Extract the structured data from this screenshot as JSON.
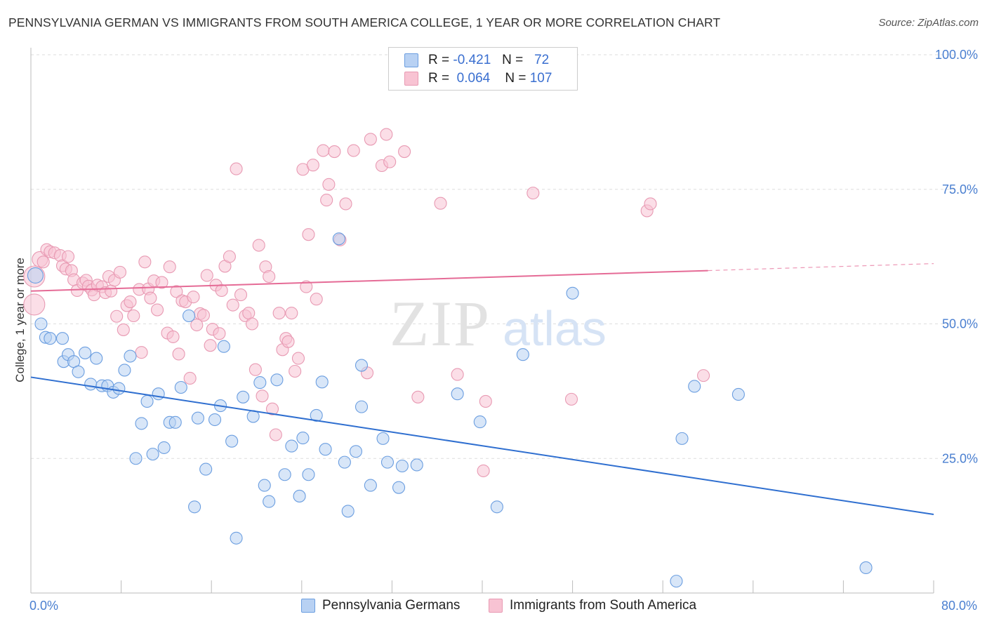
{
  "title": "PENNSYLVANIA GERMAN VS IMMIGRANTS FROM SOUTH AMERICA COLLEGE, 1 YEAR OR MORE CORRELATION CHART",
  "source": "Source: ZipAtlas.com",
  "watermark": {
    "zip": "ZIP",
    "atlas": "atlas"
  },
  "colors": {
    "blue_fill": "#b8d1f3",
    "blue_stroke": "#6b9ee0",
    "blue_line": "#2f6fd0",
    "pink_fill": "#f8c3d3",
    "pink_stroke": "#e89ab3",
    "pink_line": "#e56b96",
    "grid": "#dddddd",
    "tick_text": "#4a7fd0"
  },
  "legend": {
    "r_label": "R =",
    "n_label": "N =",
    "rows": [
      {
        "r": "-0.421",
        "n": "72"
      },
      {
        "r": "0.064",
        "n": "107"
      }
    ]
  },
  "chart_data": {
    "type": "scatter",
    "xlabel": "",
    "ylabel": "College, 1 year or more",
    "xlim": [
      0,
      80
    ],
    "ylim": [
      0,
      100
    ],
    "x_tick_labels": [
      "0.0%",
      "80.0%"
    ],
    "y_ticks": [
      25,
      50,
      75,
      100
    ],
    "y_tick_labels": [
      "25.0%",
      "50.0%",
      "75.0%",
      "100.0%"
    ],
    "grid": true,
    "legend_position": "top-center",
    "series": [
      {
        "name": "Pennsylvania Germans",
        "trend": {
          "x0": 0,
          "y0": 40.1,
          "x1": 80,
          "y1": 14.6
        },
        "points": [
          [
            0.4,
            59.0
          ],
          [
            0.9,
            50.0
          ],
          [
            1.3,
            47.5
          ],
          [
            1.7,
            47.3
          ],
          [
            2.8,
            47.3
          ],
          [
            2.9,
            43.0
          ],
          [
            3.3,
            44.3
          ],
          [
            3.8,
            43.0
          ],
          [
            4.2,
            41.1
          ],
          [
            4.8,
            44.6
          ],
          [
            5.3,
            38.8
          ],
          [
            5.8,
            43.6
          ],
          [
            6.3,
            38.5
          ],
          [
            6.8,
            38.5
          ],
          [
            7.3,
            37.3
          ],
          [
            7.8,
            38.0
          ],
          [
            8.3,
            41.4
          ],
          [
            8.8,
            44.0
          ],
          [
            9.3,
            25.0
          ],
          [
            9.8,
            31.5
          ],
          [
            10.3,
            35.6
          ],
          [
            10.8,
            25.8
          ],
          [
            11.3,
            37.0
          ],
          [
            11.8,
            27.0
          ],
          [
            12.3,
            31.7
          ],
          [
            12.8,
            31.7
          ],
          [
            13.3,
            38.2
          ],
          [
            14.0,
            51.5
          ],
          [
            14.5,
            16.0
          ],
          [
            14.8,
            32.5
          ],
          [
            15.5,
            23.0
          ],
          [
            16.3,
            32.2
          ],
          [
            16.8,
            34.8
          ],
          [
            17.1,
            45.8
          ],
          [
            17.8,
            28.2
          ],
          [
            18.2,
            10.2
          ],
          [
            18.8,
            36.4
          ],
          [
            19.7,
            32.8
          ],
          [
            20.3,
            39.1
          ],
          [
            20.7,
            20.0
          ],
          [
            21.1,
            17.0
          ],
          [
            21.8,
            39.6
          ],
          [
            22.5,
            22.0
          ],
          [
            23.1,
            27.3
          ],
          [
            23.8,
            18.0
          ],
          [
            24.1,
            28.8
          ],
          [
            24.6,
            22.0
          ],
          [
            25.3,
            33.0
          ],
          [
            25.8,
            39.2
          ],
          [
            26.1,
            26.7
          ],
          [
            27.3,
            65.8
          ],
          [
            27.8,
            24.3
          ],
          [
            28.1,
            15.2
          ],
          [
            28.8,
            26.3
          ],
          [
            29.3,
            34.6
          ],
          [
            29.3,
            42.3
          ],
          [
            30.1,
            20.0
          ],
          [
            31.2,
            28.7
          ],
          [
            31.6,
            24.3
          ],
          [
            32.6,
            19.6
          ],
          [
            32.9,
            23.6
          ],
          [
            34.2,
            23.8
          ],
          [
            37.8,
            37.0
          ],
          [
            39.8,
            31.8
          ],
          [
            41.3,
            16.0
          ],
          [
            43.6,
            44.3
          ],
          [
            48.0,
            55.7
          ],
          [
            57.2,
            2.2
          ],
          [
            57.7,
            28.7
          ],
          [
            58.8,
            38.4
          ],
          [
            62.7,
            36.9
          ],
          [
            74.0,
            4.7
          ]
        ]
      },
      {
        "name": "Immigrants from South America",
        "trend": {
          "x0": 0,
          "y0": 56.1,
          "x1": 60,
          "y1": 59.9,
          "x2": 80,
          "y2": 61.2
        },
        "points": [
          [
            0.3,
            53.6
          ],
          [
            0.3,
            58.8
          ],
          [
            0.8,
            62.0
          ],
          [
            1.1,
            61.5
          ],
          [
            1.4,
            63.8
          ],
          [
            1.7,
            63.4
          ],
          [
            2.1,
            63.2
          ],
          [
            2.6,
            62.7
          ],
          [
            2.8,
            60.8
          ],
          [
            3.1,
            60.2
          ],
          [
            3.3,
            62.5
          ],
          [
            3.6,
            59.9
          ],
          [
            3.8,
            58.2
          ],
          [
            4.1,
            56.2
          ],
          [
            4.6,
            57.6
          ],
          [
            4.9,
            58.1
          ],
          [
            5.1,
            57.0
          ],
          [
            5.4,
            56.3
          ],
          [
            5.6,
            55.4
          ],
          [
            5.9,
            57.2
          ],
          [
            6.3,
            56.9
          ],
          [
            6.6,
            55.8
          ],
          [
            6.9,
            58.8
          ],
          [
            7.1,
            56.1
          ],
          [
            7.4,
            58.1
          ],
          [
            7.6,
            51.4
          ],
          [
            7.9,
            59.6
          ],
          [
            8.2,
            48.9
          ],
          [
            8.5,
            53.4
          ],
          [
            8.8,
            54.1
          ],
          [
            9.1,
            51.5
          ],
          [
            9.6,
            56.4
          ],
          [
            9.8,
            44.7
          ],
          [
            10.1,
            61.5
          ],
          [
            10.4,
            56.5
          ],
          [
            10.6,
            54.8
          ],
          [
            10.9,
            58.0
          ],
          [
            11.2,
            52.6
          ],
          [
            11.6,
            57.7
          ],
          [
            12.1,
            48.3
          ],
          [
            12.3,
            60.6
          ],
          [
            12.6,
            47.6
          ],
          [
            12.9,
            56.0
          ],
          [
            13.1,
            44.4
          ],
          [
            13.4,
            54.3
          ],
          [
            13.7,
            54.1
          ],
          [
            14.1,
            39.9
          ],
          [
            14.4,
            55.0
          ],
          [
            14.7,
            49.8
          ],
          [
            15.0,
            51.9
          ],
          [
            15.3,
            51.6
          ],
          [
            15.6,
            59.0
          ],
          [
            15.9,
            46.0
          ],
          [
            16.1,
            49.0
          ],
          [
            16.4,
            57.2
          ],
          [
            16.7,
            48.2
          ],
          [
            16.9,
            56.2
          ],
          [
            17.2,
            60.7
          ],
          [
            17.6,
            62.5
          ],
          [
            17.9,
            53.5
          ],
          [
            18.2,
            78.8
          ],
          [
            18.6,
            55.4
          ],
          [
            19.0,
            51.5
          ],
          [
            19.3,
            52.0
          ],
          [
            19.6,
            50.0
          ],
          [
            19.9,
            41.5
          ],
          [
            20.2,
            64.6
          ],
          [
            20.5,
            36.6
          ],
          [
            20.8,
            60.6
          ],
          [
            21.1,
            58.8
          ],
          [
            21.4,
            34.2
          ],
          [
            21.7,
            29.4
          ],
          [
            22.0,
            52.0
          ],
          [
            22.3,
            45.2
          ],
          [
            22.6,
            47.3
          ],
          [
            22.8,
            46.7
          ],
          [
            23.1,
            52.0
          ],
          [
            23.4,
            41.2
          ],
          [
            23.7,
            43.6
          ],
          [
            24.1,
            78.7
          ],
          [
            24.4,
            56.9
          ],
          [
            24.6,
            66.6
          ],
          [
            25.0,
            79.5
          ],
          [
            25.3,
            54.6
          ],
          [
            25.9,
            82.2
          ],
          [
            26.2,
            73.0
          ],
          [
            26.4,
            75.9
          ],
          [
            26.9,
            82.0
          ],
          [
            27.4,
            65.6
          ],
          [
            27.9,
            72.3
          ],
          [
            28.6,
            82.2
          ],
          [
            29.8,
            40.9
          ],
          [
            30.1,
            84.3
          ],
          [
            31.1,
            79.4
          ],
          [
            31.5,
            85.2
          ],
          [
            31.8,
            80.1
          ],
          [
            33.1,
            82.0
          ],
          [
            34.3,
            36.4
          ],
          [
            36.3,
            72.4
          ],
          [
            37.8,
            40.6
          ],
          [
            40.3,
            35.6
          ],
          [
            40.1,
            22.7
          ],
          [
            44.5,
            74.3
          ],
          [
            47.9,
            36.0
          ],
          [
            54.6,
            71.0
          ],
          [
            54.9,
            72.3
          ],
          [
            59.6,
            40.4
          ]
        ]
      }
    ]
  }
}
